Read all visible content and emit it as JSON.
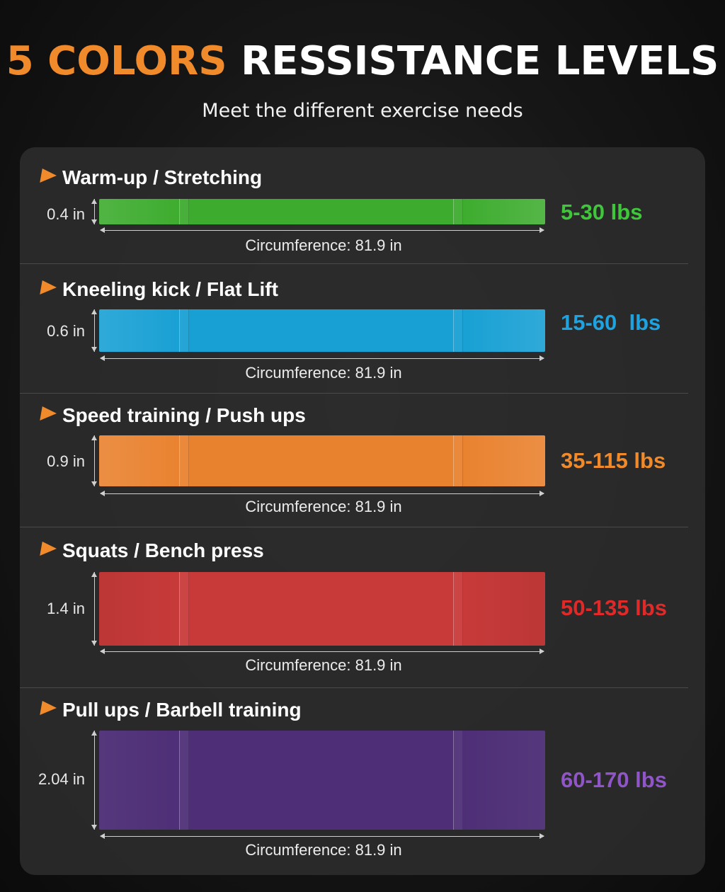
{
  "header": {
    "title_accent": "5 COLORS",
    "title_rest": "RESSISTANCE LEVELS",
    "subtitle": "Meet the different exercise needs"
  },
  "bands": [
    {
      "label": "Warm-up / Stretching",
      "width": "0.4 in",
      "circumference": "Circumference: 81.9 in",
      "range": "5-30 lbs",
      "color": "#3dac2e",
      "range_color": "#3fc63a"
    },
    {
      "label": "Kneeling kick / Flat Lift",
      "width": "0.6 in",
      "circumference": "Circumference: 81.9 in",
      "range": "15-60  lbs",
      "color": "#18a0d4",
      "range_color": "#1fa3e0"
    },
    {
      "label": "Speed training / Push ups",
      "width": "0.9 in",
      "circumference": "Circumference: 81.9 in",
      "range": "35-115 lbs",
      "color": "#e9822f",
      "range_color": "#f08a2a"
    },
    {
      "label": "Squats / Bench press",
      "width": "1.4 in",
      "circumference": "Circumference: 81.9 in",
      "range": "50-135 lbs",
      "color": "#c83a3a",
      "range_color": "#e02a2a"
    },
    {
      "label": "Pull ups / Barbell training",
      "width": "2.04 in",
      "circumference": "Circumference: 81.9 in",
      "range": "60-170 lbs",
      "color": "#4e2f77",
      "range_color": "#9055c8"
    }
  ]
}
